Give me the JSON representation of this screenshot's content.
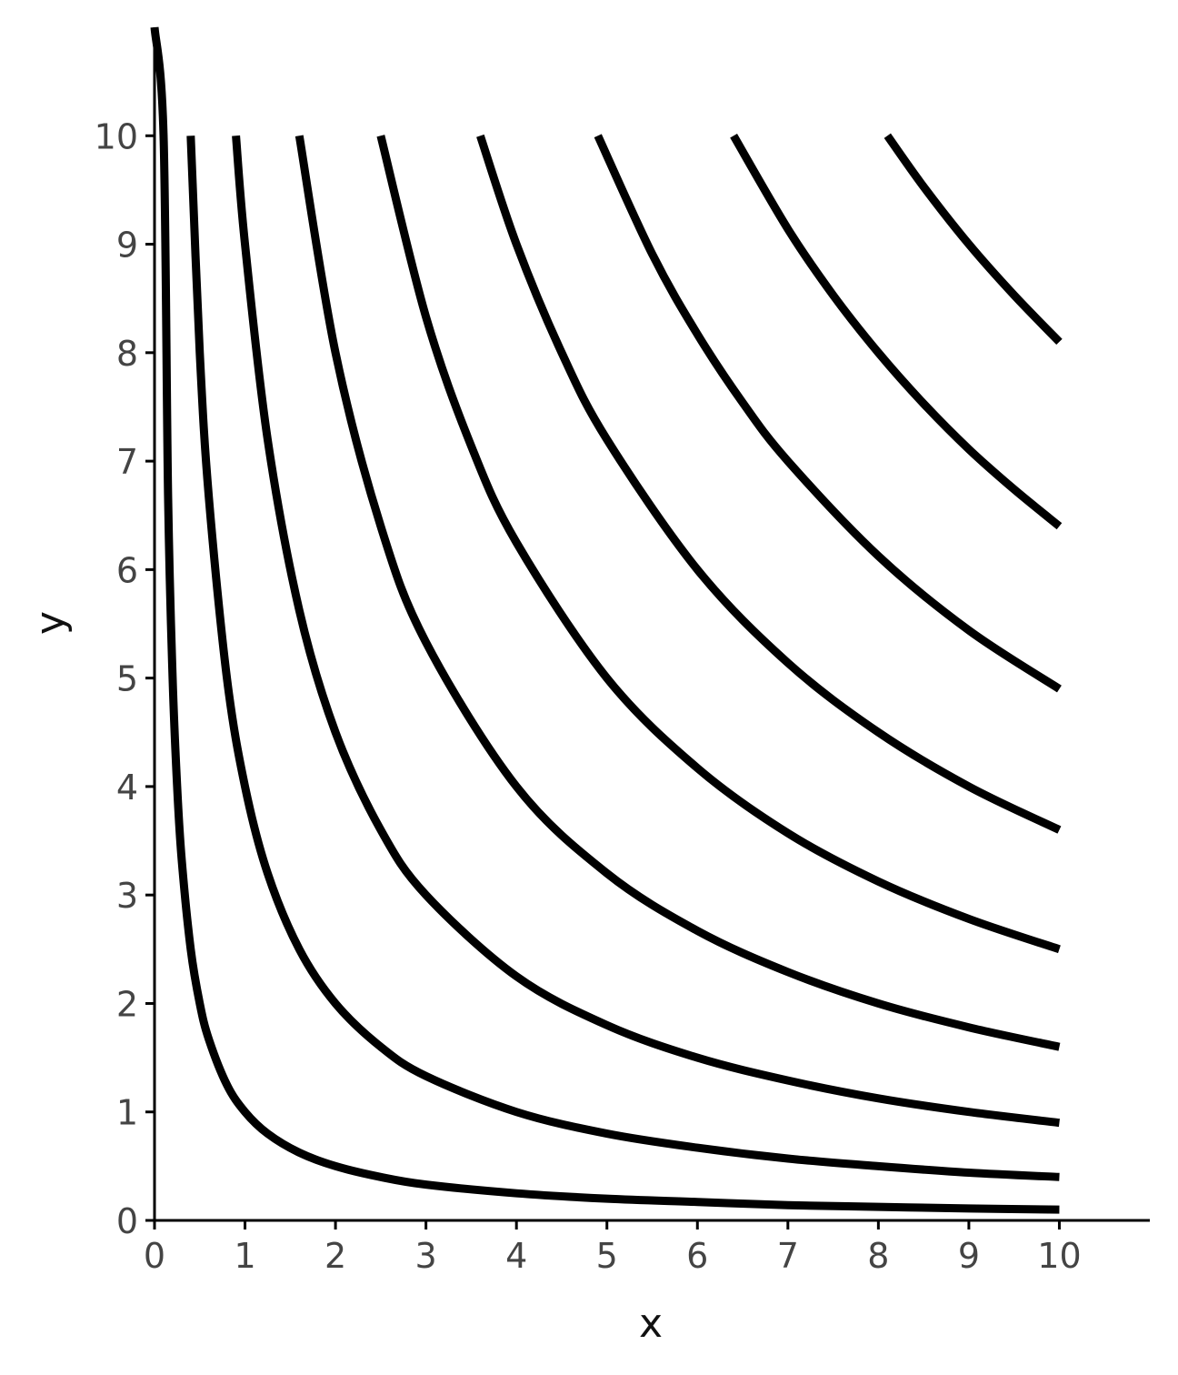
{
  "chart_data": {
    "type": "line",
    "x_label": "x",
    "y_label": "y",
    "xlim": [
      0,
      11
    ],
    "ylim": [
      0,
      11
    ],
    "xticks": [
      0,
      1,
      2,
      3,
      4,
      5,
      6,
      7,
      8,
      9,
      10
    ],
    "yticks": [
      0,
      1,
      2,
      3,
      4,
      5,
      6,
      7,
      8,
      9,
      10
    ],
    "grid": false,
    "series": [
      {
        "color": "#000000",
        "x": [
          0,
          0.1,
          0.15,
          0.2,
          0.25,
          0.3,
          0.4,
          0.5,
          0.6,
          0.8,
          1,
          1.25,
          1.6,
          2,
          2.5,
          3,
          4,
          5,
          6,
          7,
          8,
          9,
          10
        ],
        "values": [
          11,
          10,
          6.67,
          5,
          4,
          3.33,
          2.5,
          2,
          1.67,
          1.25,
          1,
          0.8,
          0.625,
          0.5,
          0.4,
          0.33,
          0.25,
          0.2,
          0.17,
          0.14,
          0.125,
          0.11,
          0.1
        ]
      },
      {
        "color": "#000000",
        "x": [
          0.4,
          0.5,
          0.6,
          0.8,
          1,
          1.25,
          1.6,
          2,
          2.5,
          3,
          4,
          5,
          6,
          7,
          8,
          9,
          10
        ],
        "values": [
          10,
          8,
          6.67,
          5,
          4,
          3.2,
          2.5,
          2,
          1.6,
          1.33,
          1,
          0.8,
          0.67,
          0.57,
          0.5,
          0.44,
          0.4
        ]
      },
      {
        "color": "#000000",
        "x": [
          0.9,
          1,
          1.25,
          1.6,
          2,
          2.5,
          3,
          4,
          5,
          6,
          7,
          8,
          9,
          10
        ],
        "values": [
          10,
          9,
          7.2,
          5.625,
          4.5,
          3.6,
          3,
          2.25,
          1.8,
          1.5,
          1.29,
          1.125,
          1,
          0.9
        ]
      },
      {
        "color": "#000000",
        "x": [
          1.6,
          2,
          2.5,
          3,
          4,
          5,
          6,
          7,
          8,
          9,
          10
        ],
        "values": [
          10,
          8,
          6.4,
          5.33,
          4,
          3.2,
          2.67,
          2.29,
          2,
          1.78,
          1.6
        ]
      },
      {
        "color": "#000000",
        "x": [
          2.5,
          3,
          3.5,
          4,
          5,
          6,
          7,
          8,
          9,
          10
        ],
        "values": [
          10,
          8.33,
          7.14,
          6.25,
          5,
          4.17,
          3.57,
          3.125,
          2.78,
          2.5
        ]
      },
      {
        "color": "#000000",
        "x": [
          3.6,
          4,
          4.5,
          5,
          6,
          7,
          8,
          9,
          10
        ],
        "values": [
          10,
          9,
          8,
          7.2,
          6,
          5.14,
          4.5,
          4,
          3.6
        ]
      },
      {
        "color": "#000000",
        "x": [
          4.9,
          5.5,
          6,
          6.5,
          7,
          8,
          9,
          10
        ],
        "values": [
          10,
          8.91,
          8.17,
          7.54,
          7,
          6.125,
          5.44,
          4.9
        ]
      },
      {
        "color": "#000000",
        "x": [
          6.4,
          7,
          7.5,
          8,
          8.5,
          9,
          9.5,
          10
        ],
        "values": [
          10,
          9.14,
          8.53,
          8,
          7.53,
          7.11,
          6.74,
          6.4
        ]
      },
      {
        "color": "#000000",
        "x": [
          8.1,
          8.5,
          9,
          9.5,
          10
        ],
        "values": [
          10,
          9.53,
          9,
          8.53,
          8.1
        ]
      }
    ]
  }
}
